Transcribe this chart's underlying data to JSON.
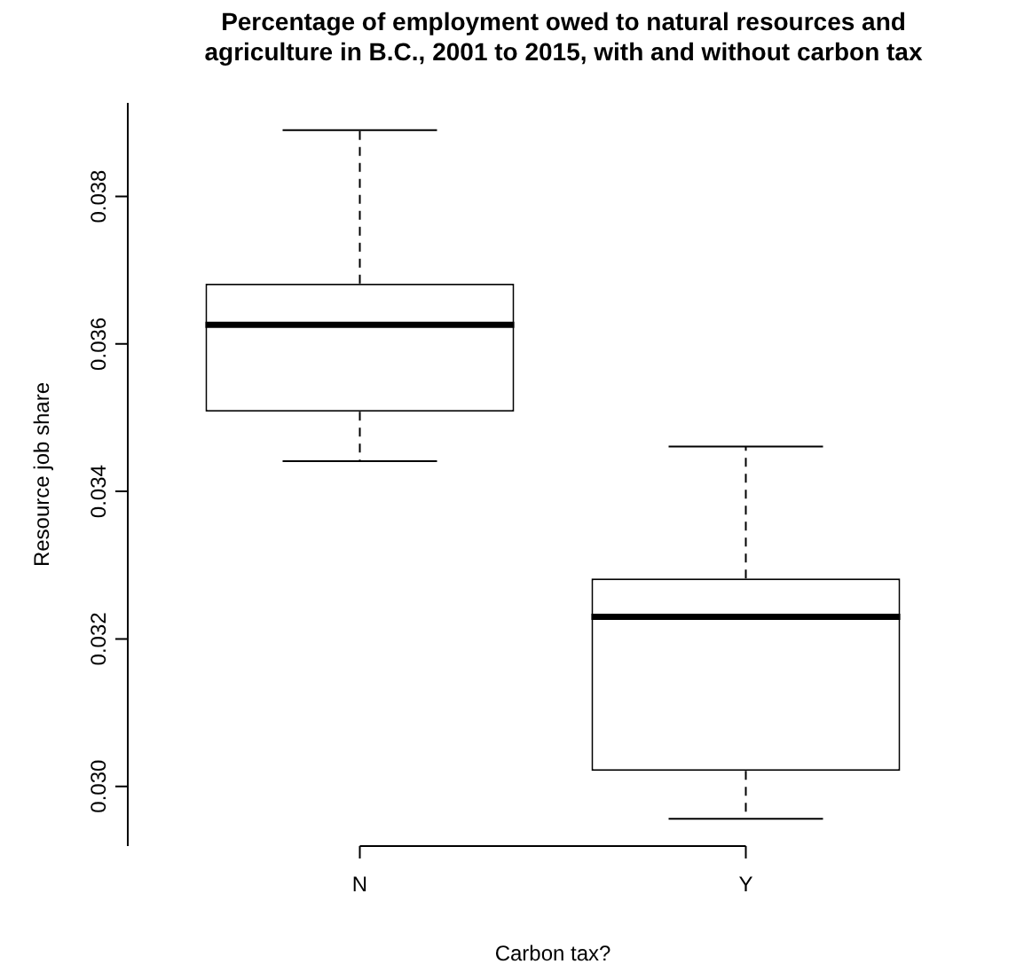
{
  "chart_data": {
    "type": "box",
    "title": "Percentage of employment owed to natural resources and agriculture in B.C., 2001 to 2015, with and without carbon tax",
    "xlabel": "Carbon tax?",
    "ylabel": "Resource job share",
    "categories": [
      "N",
      "Y"
    ],
    "boxes": [
      {
        "low": 0.03441,
        "q1": 0.03508,
        "median": 0.03626,
        "q3": 0.03682,
        "high": 0.0389
      },
      {
        "low": 0.02956,
        "q1": 0.03021,
        "median": 0.0323,
        "q3": 0.03282,
        "high": 0.03461
      }
    ],
    "ylim": [
      0.02919,
      0.03927
    ],
    "yticks": [
      {
        "value": 0.03,
        "label": "0.030"
      },
      {
        "value": 0.032,
        "label": "0.032"
      },
      {
        "value": 0.034,
        "label": "0.034"
      },
      {
        "value": 0.036,
        "label": "0.036"
      },
      {
        "value": 0.038,
        "label": "0.038"
      }
    ],
    "legend": false
  }
}
